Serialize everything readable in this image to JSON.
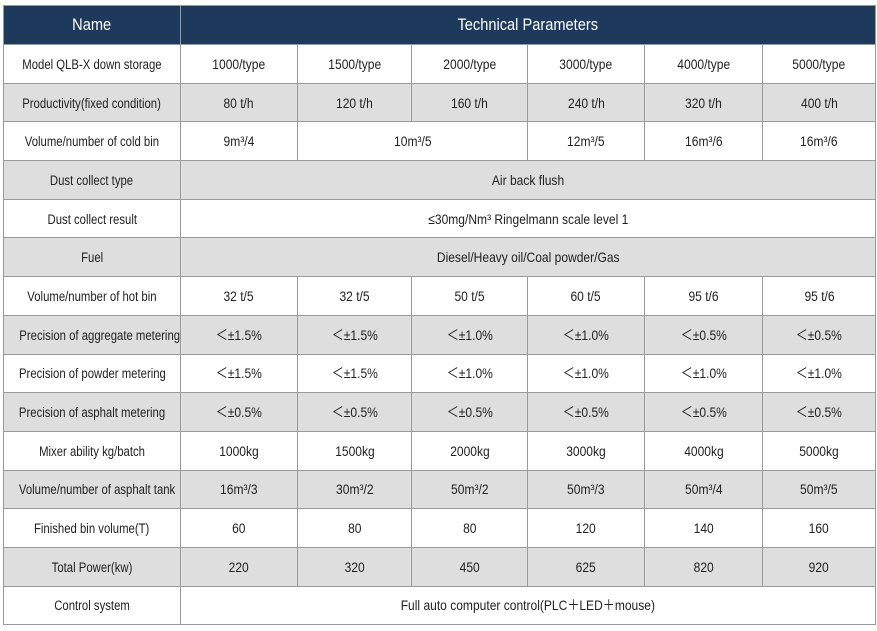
{
  "table": {
    "header": [
      "Name",
      "Technical Parameters"
    ],
    "rows": [
      {
        "label": "Model QLB-X down storage",
        "cells": [
          "1000/type",
          "1500/type",
          "2000/type",
          "3000/type",
          "4000/type",
          "5000/type"
        ]
      },
      {
        "label": "Productivity(fixed condition)",
        "cells": [
          "80 t/h",
          "120 t/h",
          "160 t/h",
          "240 t/h",
          "320 t/h",
          "400 t/h"
        ]
      },
      {
        "label": "Volume/number of cold bin",
        "cells": [
          "9m³/4",
          "10m³/5",
          "12m³/5",
          "16m³/6",
          "16m³/6"
        ]
      },
      {
        "label": "Dust collect type",
        "cells": [
          "Air back flush"
        ]
      },
      {
        "label": "Dust collect result",
        "cells": [
          "≤30mg/Nm³ Ringelmann scale level 1"
        ]
      },
      {
        "label": "Fuel",
        "cells": [
          "Diesel/Heavy oil/Coal powder/Gas"
        ]
      },
      {
        "label": "Volume/number of hot bin",
        "cells": [
          "32 t/5",
          "32 t/5",
          "50 t/5",
          "60 t/5",
          "95 t/6",
          "95 t/6"
        ]
      },
      {
        "label": "Precision of aggregate metering",
        "cells": [
          "＜±1.5%",
          "＜±1.5%",
          "＜±1.0%",
          "＜±1.0%",
          "＜±0.5%",
          "＜±0.5%"
        ]
      },
      {
        "label": "Precision of powder metering",
        "cells": [
          "＜±1.5%",
          "＜±1.5%",
          "＜±1.0%",
          "＜±1.0%",
          "＜±1.0%",
          "＜±1.0%"
        ]
      },
      {
        "label": "Precision of asphalt metering",
        "cells": [
          "＜±0.5%",
          "＜±0.5%",
          "＜±0.5%",
          "＜±0.5%",
          "＜±0.5%",
          "＜±0.5%"
        ]
      },
      {
        "label": "Mixer ability kg/batch",
        "cells": [
          "1000kg",
          "1500kg",
          "2000kg",
          "3000kg",
          "4000kg",
          "5000kg"
        ]
      },
      {
        "label": "Volume/number of asphalt tank",
        "cells": [
          "16m³/3",
          "30m³/2",
          "50m³/2",
          "50m³/3",
          "50m³/4",
          "50m³/5"
        ]
      },
      {
        "label": "Finished bin volume(T)",
        "cells": [
          60,
          80,
          80,
          120,
          140,
          160
        ]
      },
      {
        "label": "Total Power(kw)",
        "cells": [
          220,
          320,
          450,
          625,
          820,
          920
        ]
      },
      {
        "label": "Control system",
        "cells": [
          "Full auto computer control(PLC＋LED＋mouse)"
        ]
      }
    ]
  }
}
